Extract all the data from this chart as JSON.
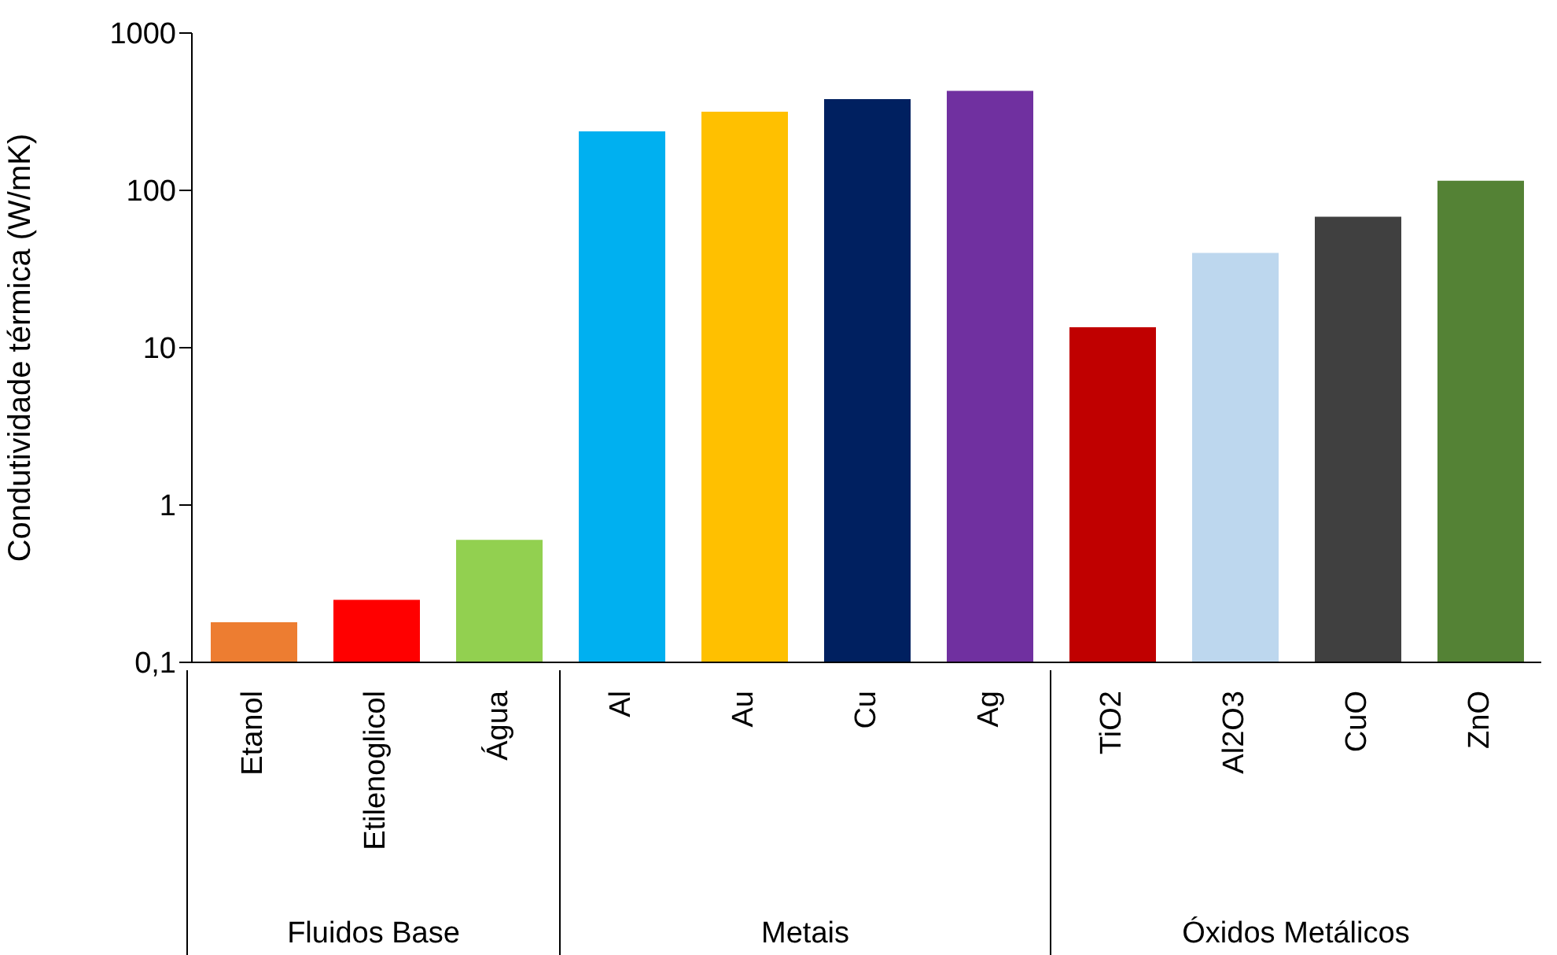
{
  "chart_data": {
    "type": "bar",
    "ylabel": "Condutividade térmica (W/mK)",
    "categories": [
      "Etanol",
      "Etilenoglicol",
      "Água",
      "Al",
      "Au",
      "Cu",
      "Ag",
      "TiO2",
      "Al2O3",
      "CuO",
      "ZnO"
    ],
    "values": [
      0.18,
      0.25,
      0.6,
      237,
      316,
      380,
      429,
      13.5,
      40,
      68,
      115
    ],
    "colors": [
      "#ed7d31",
      "#ff0000",
      "#92d050",
      "#00b0f0",
      "#ffc000",
      "#002060",
      "#7030a0",
      "#c00000",
      "#bdd7ee",
      "#404040",
      "#548235"
    ],
    "log": "y",
    "ylim": [
      0.1,
      1000
    ],
    "yticks": [
      {
        "value": 0.1,
        "label": "0,1"
      },
      1,
      10,
      100,
      1000
    ],
    "grid": false,
    "legend": false,
    "annotations": [
      "Fluidos Base",
      "Metais",
      "Óxidos Metálicos"
    ]
  }
}
